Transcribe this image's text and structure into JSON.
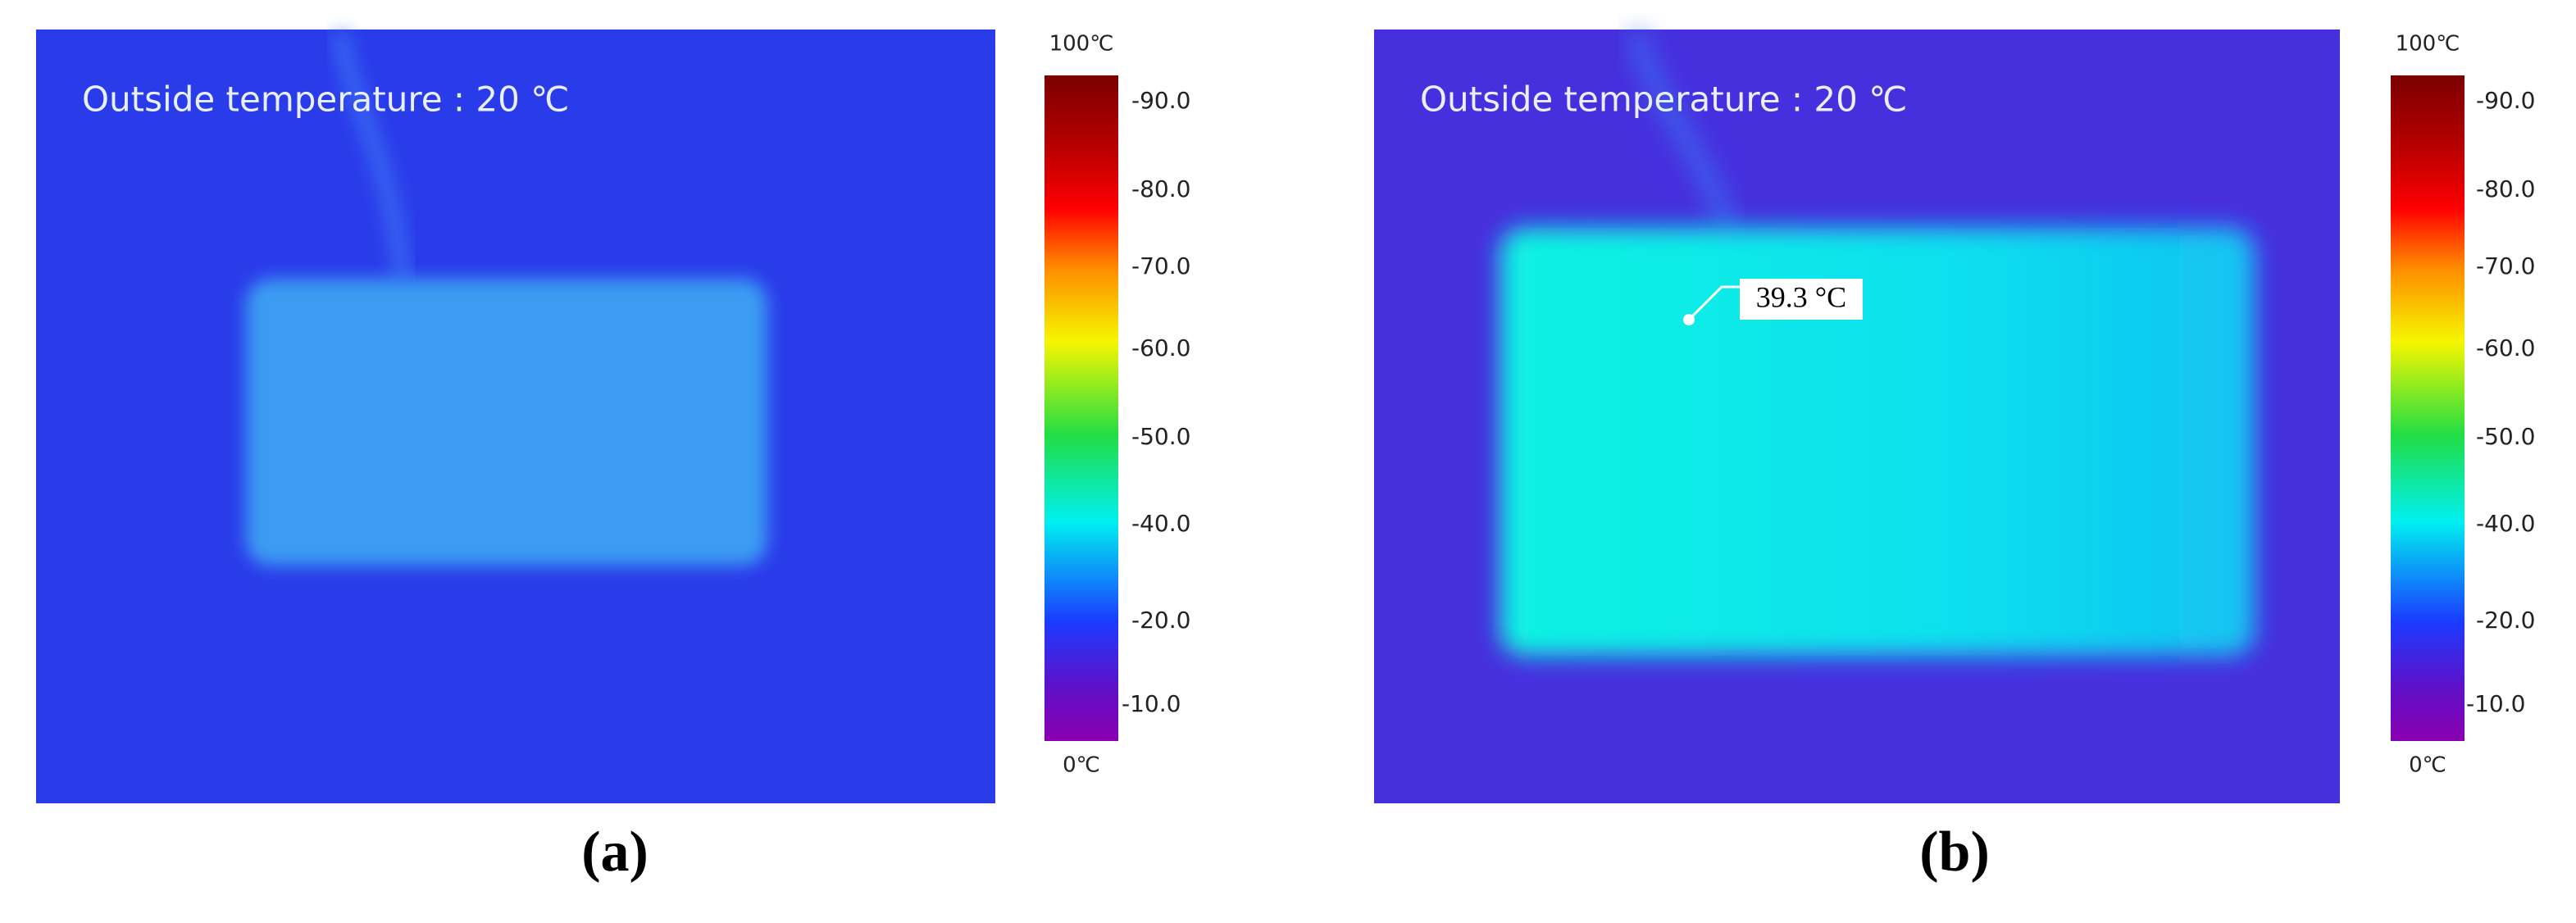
{
  "panels": [
    {
      "label": "Outside temperature : 20 ℃",
      "caption": "(a)",
      "scale": {
        "max": "100℃",
        "min": "0℃",
        "ticks": [
          "-90.0",
          "-80.0",
          "-70.0",
          "-60.0",
          "-50.0",
          "-40.0",
          "-20.0",
          "-10.0"
        ]
      }
    },
    {
      "label": "Outside temperature : 20 ℃",
      "caption": "(b)",
      "annotation": "39.3 °C",
      "scale": {
        "max": "100℃",
        "min": "0℃",
        "ticks": [
          "-90.0",
          "-80.0",
          "-70.0",
          "-60.0",
          "-50.0",
          "-40.0",
          "-20.0",
          "-10.0"
        ]
      }
    }
  ]
}
